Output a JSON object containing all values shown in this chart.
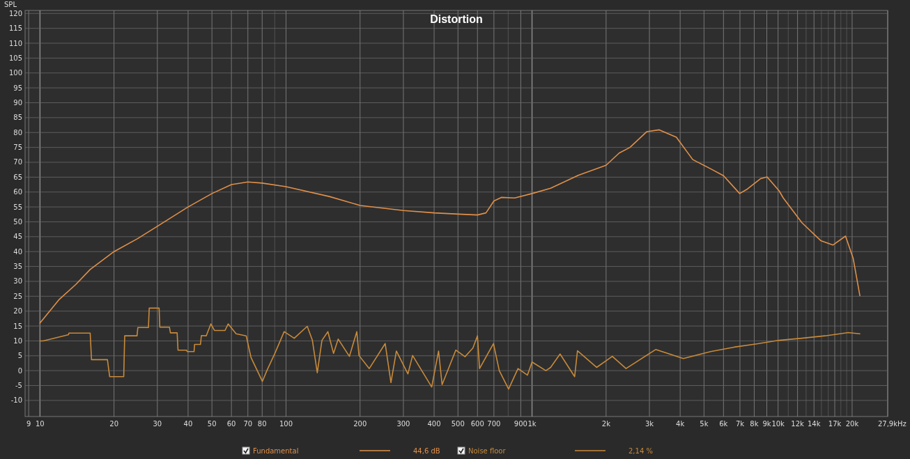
{
  "chart_data": {
    "type": "line",
    "title": "Distortion",
    "ylabel": "SPL",
    "log": "x",
    "grid": true,
    "legend": "bottom",
    "line_style": "solid",
    "marker": "none",
    "xlim": [
      8.7,
      27900
    ],
    "ylim": [
      -15.4,
      121
    ],
    "xticks": [
      9,
      10,
      20,
      30,
      40,
      50,
      60,
      70,
      80,
      {
        "value": 90,
        "label": null
      },
      100,
      200,
      300,
      400,
      500,
      600,
      700,
      {
        "value": 800,
        "label": null
      },
      900,
      {
        "value": 1000,
        "label": "1k"
      },
      {
        "value": 2000,
        "label": "2k"
      },
      {
        "value": 3000,
        "label": "3k"
      },
      {
        "value": 4000,
        "label": "4k"
      },
      {
        "value": 5000,
        "label": "5k"
      },
      {
        "value": 6000,
        "label": "6k"
      },
      {
        "value": 7000,
        "label": "7k"
      },
      {
        "value": 8000,
        "label": "8k"
      },
      {
        "value": 9000,
        "label": "9k"
      },
      {
        "value": 10000,
        "label": "10k"
      },
      {
        "value": 11000,
        "label": null
      },
      {
        "value": 12000,
        "label": "12k"
      },
      {
        "value": 13000,
        "label": null
      },
      {
        "value": 14000,
        "label": "14k"
      },
      {
        "value": 15000,
        "label": null
      },
      {
        "value": 16000,
        "label": null
      },
      {
        "value": 17000,
        "label": "17k"
      },
      {
        "value": 18000,
        "label": null
      },
      {
        "value": 19000,
        "label": null
      },
      {
        "value": 20000,
        "label": "20k"
      },
      {
        "value": 27900,
        "label": "27,9k"
      }
    ],
    "xlabel": "Hz",
    "yticks": [
      -10,
      -5,
      0,
      5,
      10,
      15,
      20,
      25,
      30,
      35,
      40,
      45,
      50,
      55,
      60,
      65,
      70,
      75,
      80,
      85,
      90,
      95,
      100,
      105,
      110,
      115,
      120
    ],
    "annotations": [
      "44,6 dB",
      "2,14 %"
    ],
    "series": [
      {
        "name": "Fundamental",
        "color": "#e0904a",
        "x": [
          10,
          12,
          14,
          16,
          20,
          25,
          30,
          40,
          50,
          60,
          70,
          80,
          100,
          150,
          200,
          300,
          400,
          500,
          600,
          650,
          700,
          750,
          850,
          1000,
          1190,
          1540,
          2000,
          2260,
          2500,
          2930,
          3290,
          3860,
          4500,
          5320,
          6000,
          6980,
          7500,
          8500,
          9020,
          10100,
          10500,
          12500,
          14900,
          16700,
          18800,
          20200,
          21500
        ],
        "values": [
          16,
          24,
          29,
          34,
          40,
          44.4,
          48.5,
          55,
          59.5,
          62.5,
          63.4,
          63,
          61.8,
          58.5,
          55.5,
          53.8,
          53,
          52.6,
          52.3,
          53,
          57,
          58.2,
          58,
          59.5,
          61.3,
          65.6,
          69,
          73.1,
          75,
          80.3,
          80.9,
          78.4,
          70.9,
          67.8,
          65.5,
          59.5,
          61,
          64.5,
          65.1,
          60.4,
          58,
          49.7,
          43.7,
          42.2,
          45.2,
          37.7,
          25.2
        ]
      },
      {
        "name": "Noise floor",
        "color": "#c88a3a",
        "x": [
          10,
          10.3,
          13.07,
          13.1,
          16,
          16.2,
          18.8,
          19.2,
          21.9,
          22.1,
          24.8,
          25,
          27.6,
          27.8,
          30.5,
          30.7,
          33.6,
          33.9,
          36.1,
          36.4,
          39.4,
          39.7,
          42.3,
          42.5,
          44.9,
          45.3,
          47.4,
          49.5,
          51.2,
          56.5,
          58.2,
          62.7,
          68.9,
          72.1,
          80.2,
          83.6,
          90.1,
          98.3,
          108,
          122,
          128,
          134,
          140,
          148,
          156,
          163,
          181,
          194,
          198,
          218,
          253,
          267,
          281,
          313,
          327,
          391,
          417,
          431,
          490,
          534,
          575,
          600,
          612,
          697,
          736,
          803,
          877,
          958,
          1000,
          1138,
          1190,
          1300,
          1490,
          1530,
          1830,
          2120,
          2410,
          3180,
          4120,
          5320,
          6620,
          8180,
          10100,
          12500,
          15500,
          19300,
          21500
        ],
        "values": [
          10,
          10,
          12.1,
          12.6,
          12.6,
          3.7,
          3.7,
          -2,
          -2,
          11.7,
          11.7,
          14.5,
          14.5,
          21,
          21,
          14.6,
          14.6,
          12.7,
          12.7,
          6.9,
          6.9,
          6.4,
          6.4,
          8.8,
          8.8,
          11.8,
          11.7,
          15.7,
          13.5,
          13.5,
          15.7,
          12.4,
          11.7,
          4.4,
          -3.6,
          0,
          5.8,
          13.1,
          10.9,
          14.9,
          10.2,
          -0.7,
          10.2,
          13.1,
          5.8,
          10.6,
          4.8,
          13.1,
          5.1,
          0.7,
          9.1,
          -4,
          6.6,
          -1.1,
          5.1,
          -5.5,
          6.6,
          -4.7,
          6.9,
          4.7,
          7.6,
          11.7,
          0.7,
          9.1,
          0,
          -6.2,
          0.7,
          -1.5,
          2.9,
          0,
          1.1,
          5.6,
          -2,
          6.7,
          1.1,
          4.8,
          0.7,
          7.1,
          4.1,
          6.4,
          7.9,
          9,
          10.2,
          10.9,
          11.7,
          12.8,
          12.4
        ]
      }
    ]
  }
}
